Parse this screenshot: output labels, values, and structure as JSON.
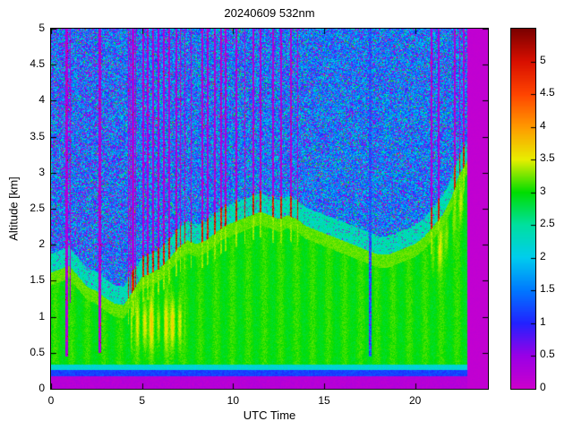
{
  "chart_data": {
    "type": "heatmap",
    "title": "20240609 532nm",
    "xlabel": "UTC Time",
    "ylabel": "Altitude [km]",
    "x_range": [
      0,
      24
    ],
    "y_range": [
      0,
      5
    ],
    "x_ticks": [
      0,
      5,
      10,
      15,
      20
    ],
    "y_ticks": [
      0,
      0.5,
      1,
      1.5,
      2,
      2.5,
      3,
      3.5,
      4,
      4.5,
      5
    ],
    "colorbar": {
      "min": 0,
      "max": 5.5,
      "ticks": [
        0,
        0.5,
        1,
        1.5,
        2,
        2.5,
        3,
        3.5,
        4,
        4.5,
        5
      ]
    },
    "colormap": [
      {
        "v": 0.0,
        "color": "#cc00cc"
      },
      {
        "v": 0.5,
        "color": "#9a00e6"
      },
      {
        "v": 1.0,
        "color": "#2222ff"
      },
      {
        "v": 1.5,
        "color": "#0078ff"
      },
      {
        "v": 2.0,
        "color": "#00cdee"
      },
      {
        "v": 2.5,
        "color": "#00e0a0"
      },
      {
        "v": 3.0,
        "color": "#00dd00"
      },
      {
        "v": 3.5,
        "color": "#e8ee00"
      },
      {
        "v": 4.0,
        "color": "#ff9900"
      },
      {
        "v": 4.5,
        "color": "#ff4400"
      },
      {
        "v": 5.0,
        "color": "#d80f00"
      },
      {
        "v": 5.5,
        "color": "#7a0000"
      }
    ],
    "features": {
      "surface_bands": [
        {
          "top_km": 0.18,
          "value": 0.12
        },
        {
          "top_km": 0.26,
          "value": 1.0
        },
        {
          "top_km": 0.34,
          "value": 2.0
        }
      ],
      "boundary_layer_top_km": [
        [
          0,
          1.55
        ],
        [
          0.5,
          1.6
        ],
        [
          1,
          1.65
        ],
        [
          1.5,
          1.5
        ],
        [
          2,
          1.35
        ],
        [
          2.5,
          1.3
        ],
        [
          3,
          1.2
        ],
        [
          3.5,
          1.12
        ],
        [
          4,
          1.1
        ],
        [
          4.5,
          1.3
        ],
        [
          5,
          1.5
        ],
        [
          5.5,
          1.55
        ],
        [
          6,
          1.62
        ],
        [
          6.5,
          1.75
        ],
        [
          7,
          1.9
        ],
        [
          7.5,
          2.0
        ],
        [
          8,
          1.95
        ],
        [
          8.5,
          2.0
        ],
        [
          9,
          2.1
        ],
        [
          9.5,
          2.2
        ],
        [
          10,
          2.25
        ],
        [
          10.5,
          2.3
        ],
        [
          11,
          2.35
        ],
        [
          11.5,
          2.4
        ],
        [
          12,
          2.35
        ],
        [
          12.5,
          2.3
        ],
        [
          13,
          2.35
        ],
        [
          13.5,
          2.3
        ],
        [
          14,
          2.2
        ],
        [
          14.5,
          2.15
        ],
        [
          15,
          2.1
        ],
        [
          15.5,
          2.05
        ],
        [
          16,
          2.0
        ],
        [
          16.5,
          1.95
        ],
        [
          17,
          1.9
        ],
        [
          17.5,
          1.85
        ],
        [
          18,
          1.8
        ],
        [
          18.5,
          1.8
        ],
        [
          19,
          1.85
        ],
        [
          19.5,
          1.9
        ],
        [
          20,
          1.95
        ],
        [
          20.5,
          2.05
        ],
        [
          21,
          2.2
        ],
        [
          21.5,
          2.35
        ],
        [
          22,
          2.6
        ],
        [
          22.4,
          2.9
        ],
        [
          22.85,
          3.1
        ]
      ],
      "attenuated_columns": [
        {
          "t": 0.85,
          "w": 0.13,
          "from_km": 0.45
        },
        {
          "t": 1.05,
          "w": 0.06,
          "from_km": 1.2
        },
        {
          "t": 2.7,
          "w": 0.14,
          "from_km": 0.5
        },
        {
          "t": 4.35,
          "w": 0.07,
          "from_km": 1.35
        },
        {
          "t": 17.55,
          "w": 0.16,
          "from_km": 0.45,
          "blue": true
        }
      ],
      "cloud_columns": [
        [
          4.25,
          0.09
        ],
        [
          4.5,
          0.1
        ],
        [
          4.65,
          0.08
        ],
        [
          5.05,
          0.1
        ],
        [
          5.3,
          0.08
        ],
        [
          5.6,
          0.07
        ],
        [
          5.9,
          0.07
        ],
        [
          6.2,
          0.08
        ],
        [
          6.5,
          0.1
        ],
        [
          6.9,
          0.1
        ],
        [
          7.1,
          0.08
        ],
        [
          7.35,
          0.08
        ],
        [
          7.7,
          0.07
        ],
        [
          8.3,
          0.1
        ],
        [
          8.6,
          0.07
        ],
        [
          9.0,
          0.09
        ],
        [
          9.35,
          0.09
        ],
        [
          9.6,
          0.1
        ],
        [
          10.2,
          0.1
        ],
        [
          10.65,
          0.09
        ],
        [
          11.1,
          0.1
        ],
        [
          11.5,
          0.1
        ],
        [
          12.2,
          0.1
        ],
        [
          12.65,
          0.08
        ],
        [
          13.2,
          0.1
        ],
        [
          13.55,
          0.08
        ],
        [
          20.9,
          0.09
        ],
        [
          21.3,
          0.1
        ],
        [
          22.2,
          0.1
        ],
        [
          22.45,
          0.09
        ],
        [
          22.65,
          0.1
        ]
      ],
      "no_data_after_t": 22.85,
      "noise_region": {
        "mean": 1.6,
        "purple_fraction": 0.18,
        "green_fraction": 0.06,
        "hot_fraction": 0.004
      }
    }
  }
}
